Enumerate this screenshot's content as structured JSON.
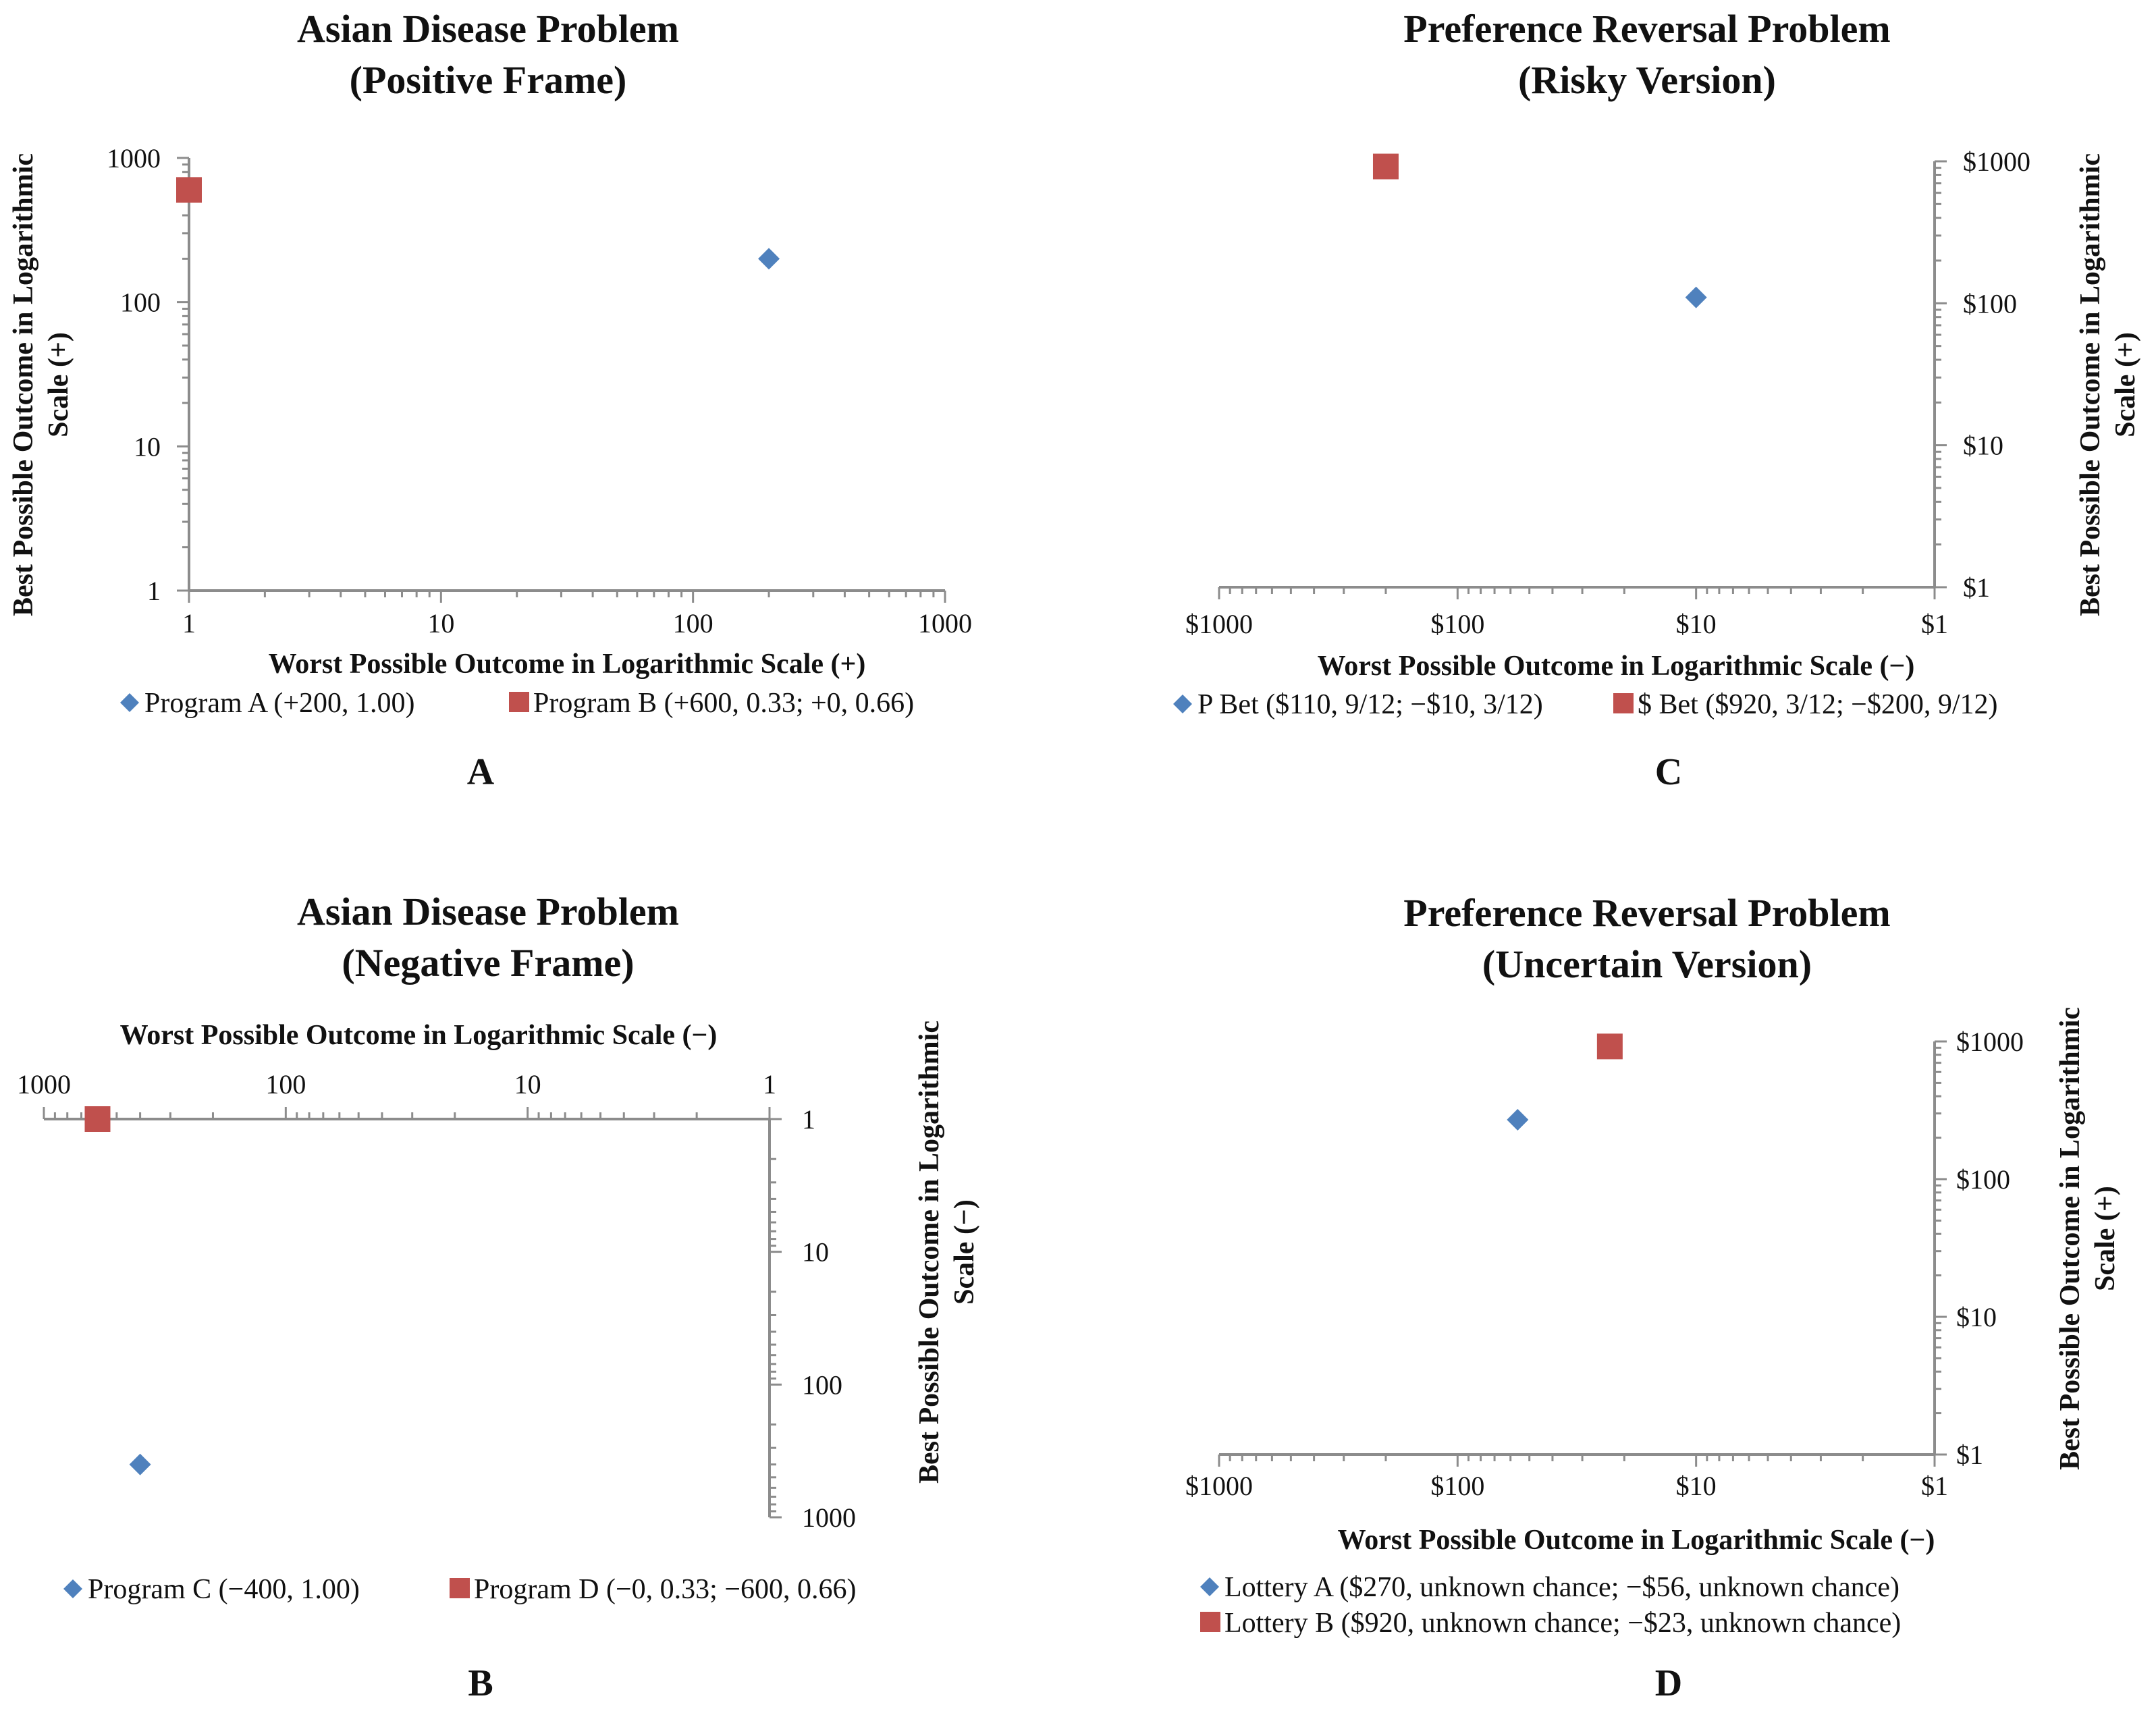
{
  "colors": {
    "series_a": "#4f81bd",
    "series_b": "#c0504d",
    "axis": "#8c8c8c"
  },
  "chart_data": [
    {
      "panel": "A",
      "type": "scatter",
      "title": [
        "Asian Disease Problem",
        "(Positive Frame)"
      ],
      "xlabel": "Worst Possible Outcome in Logarithmic Scale (+)",
      "ylabel": [
        "Best Possible Outcome in Logarithmic",
        "Scale (+)"
      ],
      "xscale": "log",
      "yscale": "log",
      "xlim": [
        1,
        1000
      ],
      "ylim": [
        1,
        1000
      ],
      "x_reversed": false,
      "y_reversed": false,
      "xticks": [
        1,
        10,
        100,
        1000
      ],
      "xtick_labels": [
        "1",
        "10",
        "100",
        "1000"
      ],
      "yticks": [
        1,
        10,
        100,
        1000
      ],
      "ytick_labels": [
        "1",
        "10",
        "100",
        "1000"
      ],
      "x_axis_position": "bottom",
      "y_axis_position": "left",
      "series": [
        {
          "name": "Program A (+200, 1.00)",
          "marker": "diamond",
          "points": [
            {
              "x": 200,
              "y": 200
            }
          ]
        },
        {
          "name": "Program B (+600, 0.33; +0, 0.66)",
          "marker": "square",
          "points": [
            {
              "x": 1,
              "y": 600
            }
          ]
        }
      ]
    },
    {
      "panel": "B",
      "type": "scatter",
      "title": [
        "Asian Disease Problem",
        "(Negative Frame)"
      ],
      "xlabel": "Worst Possible Outcome in Logarithmic Scale (−)",
      "ylabel": [
        "Best Possible Outcome in Logarithmic",
        "Scale (−)"
      ],
      "xscale": "log",
      "yscale": "log",
      "xlim": [
        1,
        1000
      ],
      "ylim": [
        1,
        1000
      ],
      "x_reversed": true,
      "y_reversed": true,
      "xticks": [
        1000,
        100,
        10,
        1
      ],
      "xtick_labels": [
        "1000",
        "100",
        "10",
        "1"
      ],
      "yticks": [
        1,
        10,
        100,
        1000
      ],
      "ytick_labels": [
        "1",
        "10",
        "100",
        "1000"
      ],
      "x_axis_position": "top",
      "y_axis_position": "right",
      "series": [
        {
          "name": "Program C (−400, 1.00)",
          "marker": "diamond",
          "points": [
            {
              "x": 400,
              "y": 400
            }
          ]
        },
        {
          "name": "Program D (−0, 0.33; −600, 0.66)",
          "marker": "square",
          "points": [
            {
              "x": 600,
              "y": 1
            }
          ]
        }
      ]
    },
    {
      "panel": "C",
      "type": "scatter",
      "title": [
        "Preference Reversal Problem",
        "(Risky Version)"
      ],
      "xlabel": "Worst Possible Outcome in Logarithmic Scale (−)",
      "ylabel": [
        "Best Possible Outcome in Logarithmic",
        "Scale (+)"
      ],
      "xscale": "log",
      "yscale": "log",
      "xlim": [
        1,
        1000
      ],
      "ylim": [
        1,
        1000
      ],
      "x_reversed": true,
      "y_reversed": false,
      "xticks": [
        1000,
        100,
        10,
        1
      ],
      "xtick_labels": [
        "$1000",
        "$100",
        "$10",
        "$1"
      ],
      "yticks": [
        1,
        10,
        100,
        1000
      ],
      "ytick_labels": [
        "$1",
        "$10",
        "$100",
        "$1000"
      ],
      "x_axis_position": "bottom",
      "y_axis_position": "right",
      "series": [
        {
          "name": "P Bet ($110, 9/12; −$10, 3/12)",
          "marker": "diamond",
          "points": [
            {
              "x": 10,
              "y": 110
            }
          ]
        },
        {
          "name": "$ Bet ($920, 3/12; −$200, 9/12)",
          "marker": "square",
          "points": [
            {
              "x": 200,
              "y": 920
            }
          ]
        }
      ]
    },
    {
      "panel": "D",
      "type": "scatter",
      "title": [
        "Preference Reversal Problem",
        "(Uncertain Version)"
      ],
      "xlabel": "Worst Possible Outcome in Logarithmic Scale (−)",
      "ylabel": [
        "Best Possible Outcome in Logarithmic",
        "Scale (+)"
      ],
      "xscale": "log",
      "yscale": "log",
      "xlim": [
        1,
        1000
      ],
      "ylim": [
        1,
        1000
      ],
      "x_reversed": true,
      "y_reversed": false,
      "xticks": [
        1000,
        100,
        10,
        1
      ],
      "xtick_labels": [
        "$1000",
        "$100",
        "$10",
        "$1"
      ],
      "yticks": [
        1,
        10,
        100,
        1000
      ],
      "ytick_labels": [
        "$1",
        "$10",
        "$100",
        "$1000"
      ],
      "x_axis_position": "bottom",
      "y_axis_position": "right",
      "series": [
        {
          "name": "Lottery A ($270, unknown chance; −$56, unknown chance)",
          "marker": "diamond",
          "points": [
            {
              "x": 56,
              "y": 270
            }
          ]
        },
        {
          "name": "Lottery B ($920, unknown chance; −$23, unknown chance)",
          "marker": "square",
          "points": [
            {
              "x": 23,
              "y": 920
            }
          ]
        }
      ]
    }
  ]
}
